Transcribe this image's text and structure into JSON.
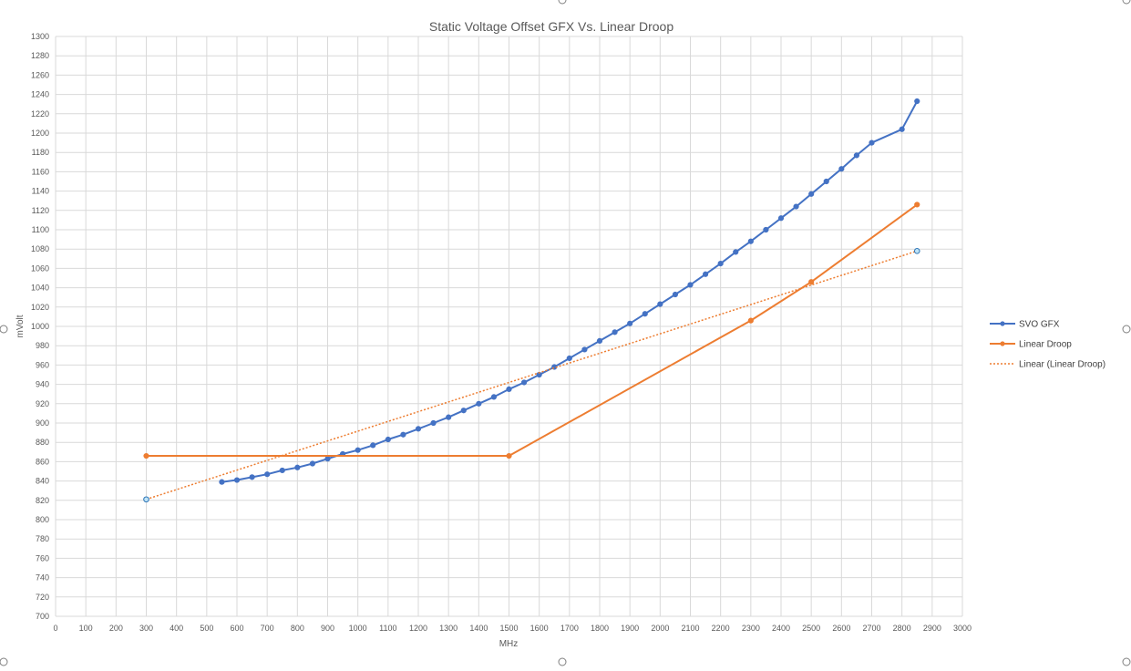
{
  "chart_data": {
    "type": "line",
    "title": "Static Voltage Offset GFX Vs. Linear Droop",
    "xlabel": "MHz",
    "ylabel": "mVolt",
    "xlim": [
      0,
      3000
    ],
    "ylim": [
      700,
      1300
    ],
    "x_ticks": [
      0,
      100,
      200,
      300,
      400,
      500,
      600,
      700,
      800,
      900,
      1000,
      1100,
      1200,
      1300,
      1400,
      1500,
      1600,
      1700,
      1800,
      1900,
      2000,
      2100,
      2200,
      2300,
      2400,
      2500,
      2600,
      2700,
      2800,
      2900,
      3000
    ],
    "y_ticks": [
      700,
      720,
      740,
      760,
      780,
      800,
      820,
      840,
      860,
      880,
      900,
      920,
      940,
      960,
      980,
      1000,
      1020,
      1040,
      1060,
      1080,
      1100,
      1120,
      1140,
      1160,
      1180,
      1200,
      1220,
      1240,
      1260,
      1280,
      1300
    ],
    "grid": true,
    "legend_position": "right",
    "series": [
      {
        "name": "SVO GFX",
        "color": "#4472C4",
        "marker": "circle",
        "points": [
          [
            550,
            839
          ],
          [
            600,
            841
          ],
          [
            650,
            844
          ],
          [
            700,
            847
          ],
          [
            750,
            851
          ],
          [
            800,
            854
          ],
          [
            850,
            858
          ],
          [
            900,
            863
          ],
          [
            950,
            868
          ],
          [
            1000,
            872
          ],
          [
            1050,
            877
          ],
          [
            1100,
            883
          ],
          [
            1150,
            888
          ],
          [
            1200,
            894
          ],
          [
            1250,
            900
          ],
          [
            1300,
            906
          ],
          [
            1350,
            913
          ],
          [
            1400,
            920
          ],
          [
            1450,
            927
          ],
          [
            1500,
            935
          ],
          [
            1550,
            942
          ],
          [
            1600,
            950
          ],
          [
            1650,
            958
          ],
          [
            1700,
            967
          ],
          [
            1750,
            976
          ],
          [
            1800,
            985
          ],
          [
            1850,
            994
          ],
          [
            1900,
            1003
          ],
          [
            1950,
            1013
          ],
          [
            2000,
            1023
          ],
          [
            2050,
            1033
          ],
          [
            2100,
            1043
          ],
          [
            2150,
            1054
          ],
          [
            2200,
            1065
          ],
          [
            2250,
            1077
          ],
          [
            2300,
            1088
          ],
          [
            2350,
            1100
          ],
          [
            2400,
            1112
          ],
          [
            2450,
            1124
          ],
          [
            2500,
            1137
          ],
          [
            2550,
            1150
          ],
          [
            2600,
            1163
          ],
          [
            2650,
            1177
          ],
          [
            2700,
            1190
          ],
          [
            2800,
            1204
          ],
          [
            2850,
            1233
          ]
        ]
      },
      {
        "name": "Linear Droop",
        "color": "#ED7D31",
        "marker": "circle",
        "points": [
          [
            300,
            866
          ],
          [
            1500,
            866
          ],
          [
            2300,
            1006
          ],
          [
            2500,
            1046
          ],
          [
            2850,
            1126
          ]
        ]
      },
      {
        "name": "Linear (Linear Droop)",
        "color": "#ED7D31",
        "style": "dotted",
        "points": [
          [
            300,
            821
          ],
          [
            2850,
            1078
          ]
        ]
      }
    ]
  }
}
